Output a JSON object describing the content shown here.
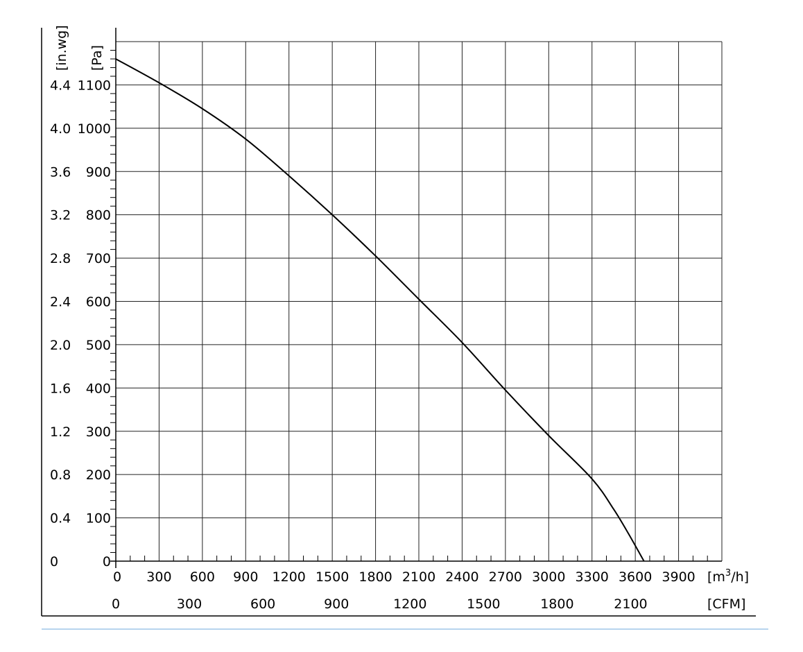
{
  "chart_data": {
    "type": "line",
    "xlabel_primary": "[m³/h]",
    "xlabel_primary_base": "[m",
    "xlabel_primary_sup": "3",
    "xlabel_primary_tail": "/h]",
    "xlabel_secondary": "[CFM]",
    "ylabel_primary": "[Pa]",
    "ylabel_secondary": "[in.wg]",
    "xlim": [
      0,
      4200
    ],
    "ylim": [
      0,
      1200
    ],
    "grid": true,
    "x_ticks": [
      "0",
      "300",
      "600",
      "900",
      "1200",
      "1500",
      "1800",
      "2100",
      "2400",
      "2700",
      "3000",
      "3300",
      "3600",
      "3900"
    ],
    "x_tick_values": [
      0,
      300,
      600,
      900,
      1200,
      1500,
      1800,
      2100,
      2400,
      2700,
      3000,
      3300,
      3600,
      3900
    ],
    "cfm_ticks": [
      "0",
      "300",
      "600",
      "900",
      "1200",
      "1500",
      "1800",
      "2100"
    ],
    "cfm_tick_values": [
      0,
      300,
      600,
      900,
      1200,
      1500,
      1800,
      2100
    ],
    "y_ticks": [
      "0",
      "100",
      "200",
      "300",
      "400",
      "500",
      "600",
      "700",
      "800",
      "900",
      "1000",
      "1100"
    ],
    "y_tick_values": [
      0,
      100,
      200,
      300,
      400,
      500,
      600,
      700,
      800,
      900,
      1000,
      1100
    ],
    "inwg_ticks": [
      "0",
      "0.4",
      "0.8",
      "1.2",
      "1.6",
      "2.0",
      "2.4",
      "2.8",
      "3.2",
      "3.6",
      "4.0",
      "4.4"
    ],
    "inwg_tick_values": [
      0,
      0.4,
      0.8,
      1.2,
      1.6,
      2.0,
      2.4,
      2.8,
      3.2,
      3.6,
      4.0,
      4.4
    ],
    "series": [
      {
        "x": [
          0,
          300,
          600,
          900,
          1200,
          1500,
          1800,
          2100,
          2400,
          2700,
          3000,
          3300,
          3450,
          3550,
          3660
        ],
        "y": [
          1160,
          1105,
          1045,
          975,
          890,
          800,
          705,
          605,
          505,
          395,
          290,
          190,
          120,
          65,
          0
        ]
      }
    ]
  }
}
